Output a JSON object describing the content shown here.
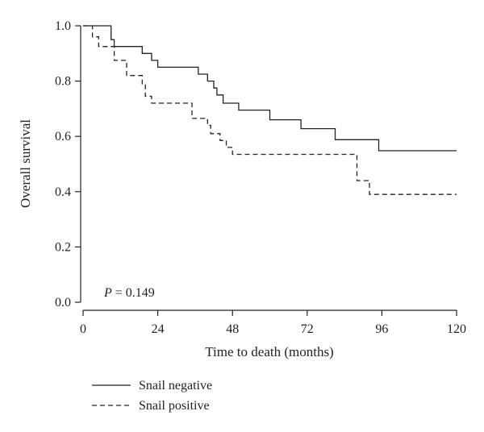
{
  "chart_data": {
    "type": "line",
    "step": true,
    "xlabel": "Time to death (months)",
    "ylabel": "Overall survival",
    "xlim": [
      0,
      120
    ],
    "ylim": [
      0,
      1.0
    ],
    "xticks": [
      0,
      24,
      48,
      72,
      96,
      120
    ],
    "yticks": [
      0.0,
      0.2,
      0.4,
      0.6,
      0.8,
      1.0
    ],
    "xtick_labels": [
      "0",
      "24",
      "48",
      "72",
      "96",
      "120"
    ],
    "ytick_labels": [
      "0.0",
      "0.2",
      "0.4",
      "0.6",
      "0.8",
      "1.0"
    ],
    "grid": false,
    "legend_position": "bottom-left",
    "annotation": {
      "italic": "P",
      "text": " = 0.149"
    },
    "series": [
      {
        "name": "Snail negative",
        "line_style": "solid",
        "color": "#222222",
        "points": [
          [
            0,
            1.0
          ],
          [
            9,
            1.0
          ],
          [
            9,
            0.95
          ],
          [
            10,
            0.95
          ],
          [
            10,
            0.925
          ],
          [
            19,
            0.925
          ],
          [
            19,
            0.9
          ],
          [
            22,
            0.9
          ],
          [
            22,
            0.875
          ],
          [
            24,
            0.875
          ],
          [
            24,
            0.85
          ],
          [
            37,
            0.85
          ],
          [
            37,
            0.825
          ],
          [
            40,
            0.825
          ],
          [
            40,
            0.8
          ],
          [
            42,
            0.8
          ],
          [
            42,
            0.775
          ],
          [
            43,
            0.775
          ],
          [
            43,
            0.75
          ],
          [
            45,
            0.75
          ],
          [
            45,
            0.72
          ],
          [
            50,
            0.72
          ],
          [
            50,
            0.695
          ],
          [
            60,
            0.695
          ],
          [
            60,
            0.66
          ],
          [
            70,
            0.66
          ],
          [
            70,
            0.628
          ],
          [
            81,
            0.628
          ],
          [
            81,
            0.588
          ],
          [
            95,
            0.588
          ],
          [
            95,
            0.548
          ],
          [
            120,
            0.548
          ]
        ]
      },
      {
        "name": "Snail positive",
        "line_style": "dashed",
        "color": "#222222",
        "points": [
          [
            0,
            1.0
          ],
          [
            3,
            1.0
          ],
          [
            3,
            0.96
          ],
          [
            5,
            0.96
          ],
          [
            5,
            0.925
          ],
          [
            10,
            0.925
          ],
          [
            10,
            0.875
          ],
          [
            14,
            0.875
          ],
          [
            14,
            0.82
          ],
          [
            19,
            0.82
          ],
          [
            19,
            0.79
          ],
          [
            20,
            0.79
          ],
          [
            20,
            0.745
          ],
          [
            22,
            0.745
          ],
          [
            22,
            0.72
          ],
          [
            35,
            0.72
          ],
          [
            35,
            0.665
          ],
          [
            40,
            0.665
          ],
          [
            40,
            0.64
          ],
          [
            41,
            0.64
          ],
          [
            41,
            0.61
          ],
          [
            44,
            0.61
          ],
          [
            44,
            0.585
          ],
          [
            46,
            0.585
          ],
          [
            46,
            0.56
          ],
          [
            48,
            0.56
          ],
          [
            48,
            0.535
          ],
          [
            88,
            0.535
          ],
          [
            88,
            0.44
          ],
          [
            92,
            0.44
          ],
          [
            92,
            0.39
          ],
          [
            120,
            0.39
          ]
        ]
      }
    ]
  }
}
